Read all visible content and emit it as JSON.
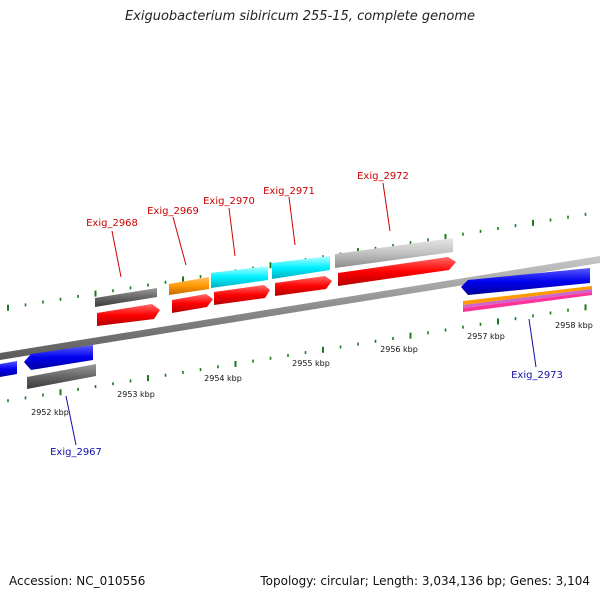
{
  "title": "Exiguobacterium sibiricum 255-15, complete genome",
  "accession": "Accession: NC_010556",
  "stats": "Topology: circular; Length: 3,034,136 bp; Genes: 3,104",
  "colors": {
    "red": "#ff0000",
    "cyan": "#00ffff",
    "orange": "#ff9900",
    "gray": "#666666",
    "light_gray": "#bbbbbb",
    "blue": "#0000ee",
    "tick_green": "#1b7a1b",
    "label_red": "#cc0000",
    "label_blue": "#1010aa"
  },
  "scale_labels": [
    "2952 kbp",
    "2953 kbp",
    "2954 kbp",
    "2955 kbp",
    "2956 kbp",
    "2957 kbp",
    "2958 kbp"
  ],
  "genes": [
    {
      "id": "Exig_2967",
      "strand": "minus",
      "color": "blue"
    },
    {
      "id": "Exig_2968",
      "strand": "plus",
      "color": "gray"
    },
    {
      "id": "Exig_2969",
      "strand": "plus",
      "color": "orange"
    },
    {
      "id": "Exig_2970",
      "strand": "plus",
      "color": "cyan"
    },
    {
      "id": "Exig_2971",
      "strand": "plus",
      "color": "cyan"
    },
    {
      "id": "Exig_2972",
      "strand": "plus",
      "color": "light_gray"
    },
    {
      "id": "Exig_2973",
      "strand": "minus",
      "color": "blue"
    }
  ]
}
